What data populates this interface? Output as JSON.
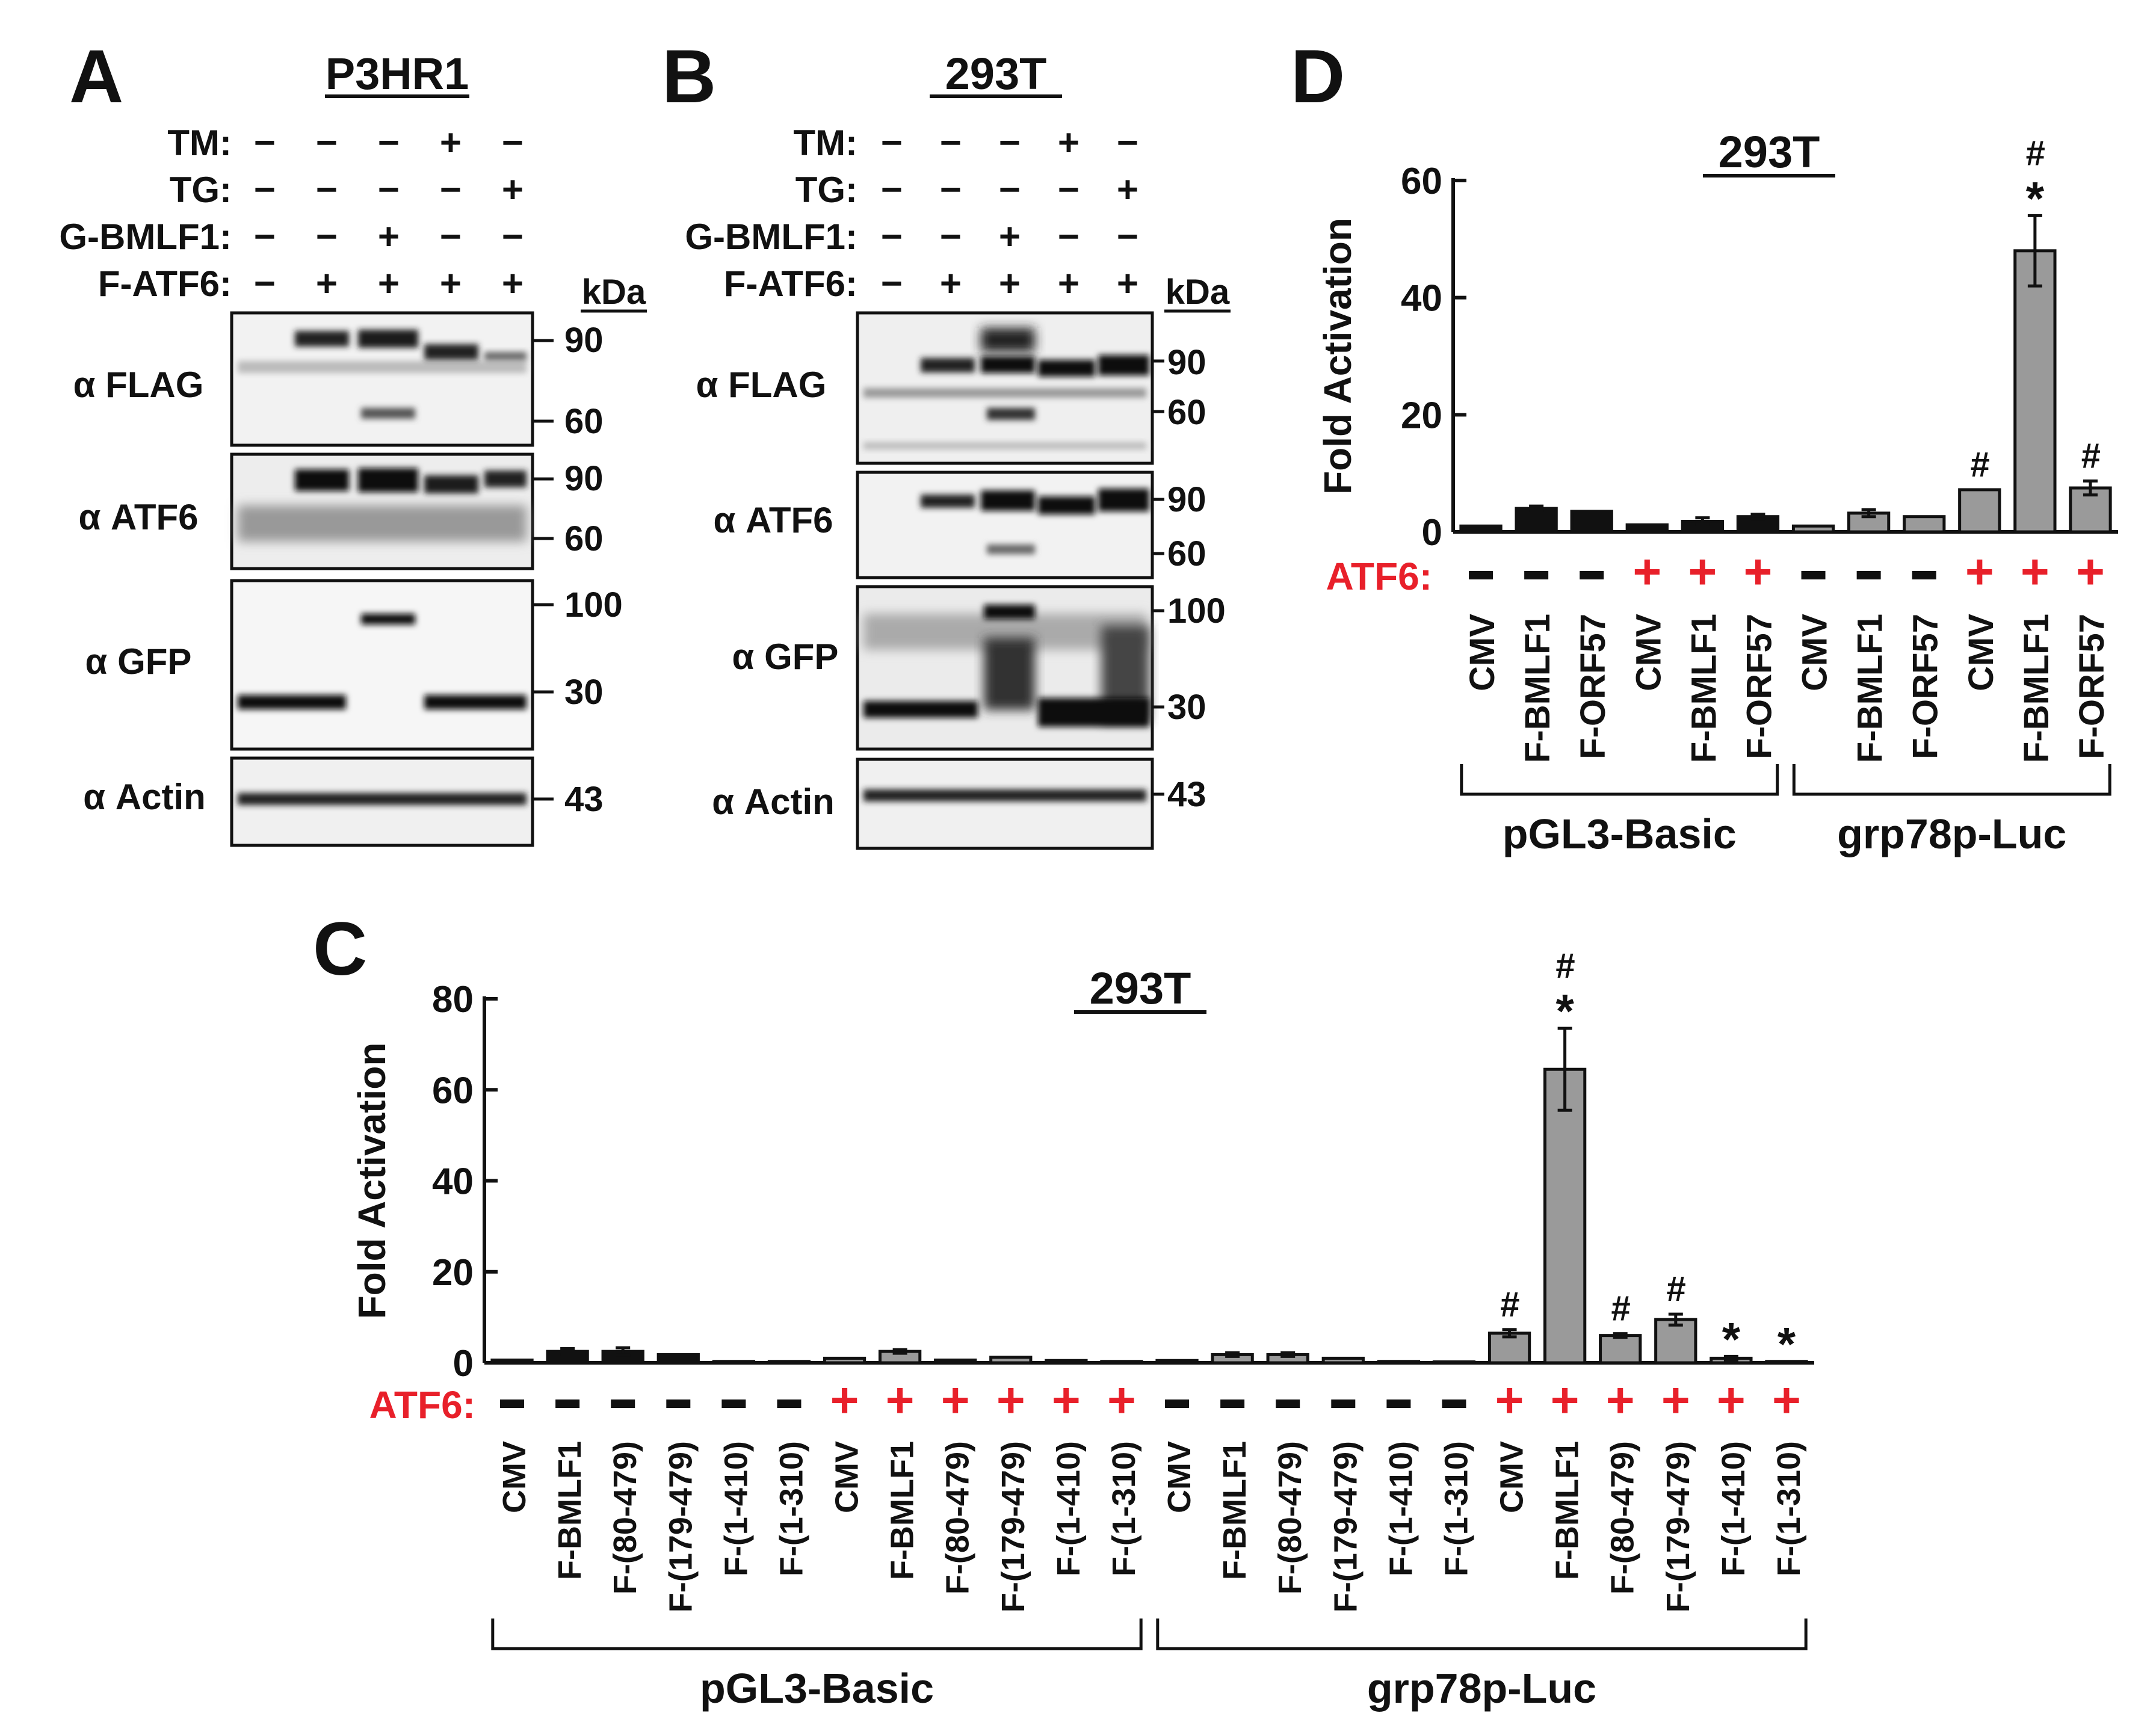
{
  "panel_letters": {
    "A": "A",
    "B": "B",
    "C": "C",
    "D": "D"
  },
  "blots": [
    {
      "key": "A",
      "cell_line": "P3HR1",
      "row_labels": [
        "TM:",
        "TG:",
        "G-BMLF1:",
        "F-ATF6:"
      ],
      "treatments": [
        [
          "−",
          "−",
          "−",
          "+",
          "−"
        ],
        [
          "−",
          "−",
          "−",
          "−",
          "+"
        ],
        [
          "−",
          "−",
          "+",
          "−",
          "−"
        ],
        [
          "−",
          "+",
          "+",
          "+",
          "+"
        ]
      ],
      "kda_header": "kDa",
      "antibodies": [
        {
          "label": "α FLAG",
          "markers": [
            "90",
            "60"
          ]
        },
        {
          "label": "α ATF6",
          "markers": [
            "90",
            "60"
          ]
        },
        {
          "label": "α GFP",
          "markers": [
            "100",
            "30"
          ]
        },
        {
          "label": "α Actin",
          "markers": [
            "43"
          ]
        }
      ]
    },
    {
      "key": "B",
      "cell_line": "293T",
      "row_labels": [
        "TM:",
        "TG:",
        "G-BMLF1:",
        "F-ATF6:"
      ],
      "treatments": [
        [
          "−",
          "−",
          "−",
          "+",
          "−"
        ],
        [
          "−",
          "−",
          "−",
          "−",
          "+"
        ],
        [
          "−",
          "−",
          "+",
          "−",
          "−"
        ],
        [
          "−",
          "+",
          "+",
          "+",
          "+"
        ]
      ],
      "kda_header": "kDa",
      "antibodies": [
        {
          "label": "α FLAG",
          "markers": [
            "90",
            "60"
          ]
        },
        {
          "label": "α ATF6",
          "markers": [
            "90",
            "60"
          ]
        },
        {
          "label": "α GFP",
          "markers": [
            "100",
            "30"
          ]
        },
        {
          "label": "α Actin",
          "markers": [
            "43"
          ]
        }
      ]
    }
  ],
  "chart_data": [
    {
      "key": "D",
      "type": "bar",
      "title": "293T",
      "ylabel": "Fold Activation",
      "ylim": [
        0,
        60
      ],
      "yticks": [
        0,
        20,
        40,
        60
      ],
      "atf6_label": "ATF6:",
      "categories": [
        "CMV",
        "F-BMLF1",
        "F-ORF57",
        "CMV",
        "F-BMLF1",
        "F-ORF57",
        "CMV",
        "F-BMLF1",
        "F-ORF57",
        "CMV",
        "F-BMLF1",
        "F-ORF57"
      ],
      "atf6": [
        "−",
        "−",
        "−",
        "+",
        "+",
        "+",
        "−",
        "−",
        "−",
        "+",
        "+",
        "+"
      ],
      "values": [
        1,
        4,
        3.5,
        1.2,
        1.8,
        2.6,
        1,
        3.2,
        2.6,
        7.2,
        48,
        7.5
      ],
      "errors": [
        0.2,
        0.4,
        0.3,
        0.2,
        0.6,
        0.4,
        0.2,
        0.6,
        0.3,
        0.3,
        6,
        1.2
      ],
      "colors": [
        "black",
        "black",
        "black",
        "black",
        "black",
        "black",
        "gray",
        "gray",
        "gray",
        "gray",
        "gray",
        "gray"
      ],
      "annotations": [
        "",
        "",
        "",
        "",
        "",
        "",
        "",
        "",
        "",
        "#",
        "#\n*",
        "#"
      ],
      "groups": [
        {
          "label": "pGL3-Basic",
          "span": [
            0,
            5
          ]
        },
        {
          "label": "grp78p-Luc",
          "span": [
            6,
            11
          ]
        }
      ]
    },
    {
      "key": "C",
      "type": "bar",
      "title": "293T",
      "ylabel": "Fold Activation",
      "ylim": [
        0,
        80
      ],
      "yticks": [
        0,
        20,
        40,
        60,
        80
      ],
      "atf6_label": "ATF6:",
      "categories": [
        "CMV",
        "F-BMLF1",
        "F-(80-479)",
        "F-(179-479)",
        "F-(1-410)",
        "F-(1-310)",
        "CMV",
        "F-BMLF1",
        "F-(80-479)",
        "F-(179-479)",
        "F-(1-410)",
        "F-(1-310)",
        "CMV",
        "F-BMLF1",
        "F-(80-479)",
        "F-(179-479)",
        "F-(1-410)",
        "F-(1-310)",
        "CMV",
        "F-BMLF1",
        "F-(80-479)",
        "F-(179-479)",
        "F-(1-410)",
        "F-(1-310)"
      ],
      "atf6": [
        "−",
        "−",
        "−",
        "−",
        "−",
        "−",
        "+",
        "+",
        "+",
        "+",
        "+",
        "+",
        "−",
        "−",
        "−",
        "−",
        "−",
        "−",
        "+",
        "+",
        "+",
        "+",
        "+",
        "+"
      ],
      "values": [
        0.6,
        2.5,
        2.5,
        1.8,
        0.3,
        0.3,
        1,
        2.5,
        0.6,
        1.2,
        0.5,
        0.3,
        0.5,
        1.8,
        1.8,
        1,
        0.3,
        0.2,
        6.5,
        64.5,
        6,
        9.5,
        1,
        0.3
      ],
      "errors": [
        0.2,
        0.6,
        0.8,
        0.3,
        0.1,
        0.1,
        0.3,
        0.4,
        0.2,
        0.3,
        0.2,
        0.1,
        0.2,
        0.4,
        0.4,
        0.3,
        0.1,
        0.1,
        0.8,
        9,
        0.4,
        1.2,
        0.4,
        0.2
      ],
      "colors": [
        "black",
        "black",
        "black",
        "black",
        "black",
        "black",
        "gray",
        "gray",
        "gray",
        "gray",
        "gray",
        "gray",
        "gray",
        "gray",
        "gray",
        "gray",
        "gray",
        "gray",
        "gray",
        "gray",
        "gray",
        "gray",
        "gray",
        "gray"
      ],
      "annotations": [
        "",
        "",
        "",
        "",
        "",
        "",
        "",
        "",
        "",
        "",
        "",
        "",
        "",
        "",
        "",
        "",
        "",
        "",
        "#",
        "#\n*",
        "#",
        "#",
        "*",
        "*"
      ],
      "groups": [
        {
          "label": "pGL3-Basic",
          "span": [
            0,
            11
          ]
        },
        {
          "label": "grp78p-Luc",
          "span": [
            12,
            23
          ]
        }
      ]
    }
  ]
}
